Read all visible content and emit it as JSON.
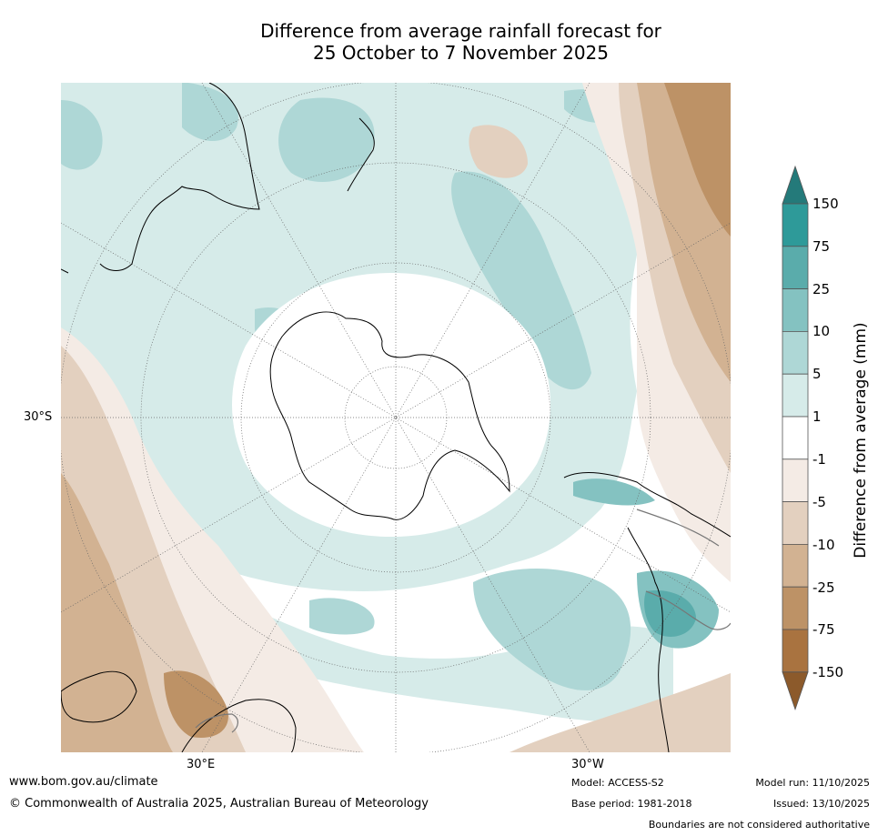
{
  "title": "Difference from average rainfall forecast for\n25 October to 7 November 2025",
  "axes": {
    "lat_label": "30°S",
    "lon_left": "30°E",
    "lon_right": "30°W"
  },
  "colorbar": {
    "label": "Difference from average (mm)",
    "ticks": [
      "150",
      "75",
      "25",
      "10",
      "5",
      "1",
      "-1",
      "-5",
      "-10",
      "-25",
      "-75",
      "-150"
    ],
    "colors": [
      "#247a7a",
      "#2e9a99",
      "#5aacab",
      "#84c2c1",
      "#aed7d6",
      "#d6ebe9",
      "#ffffff",
      "#f4ebe5",
      "#e3d0bf",
      "#d2b292",
      "#bd9266",
      "#a97340",
      "#8c5a2b"
    ]
  },
  "footer": {
    "url": "www.bom.gov.au/climate",
    "copyright": "© Commonwealth of Australia 2025, Australian Bureau of Meteorology",
    "model": "Model: ACCESS-S2",
    "base_period": "Base period: 1981-2018",
    "model_run": "Model run: 11/10/2025",
    "issued": "Issued: 13/10/2025",
    "disclaimer": "Boundaries are not considered authoritative"
  }
}
